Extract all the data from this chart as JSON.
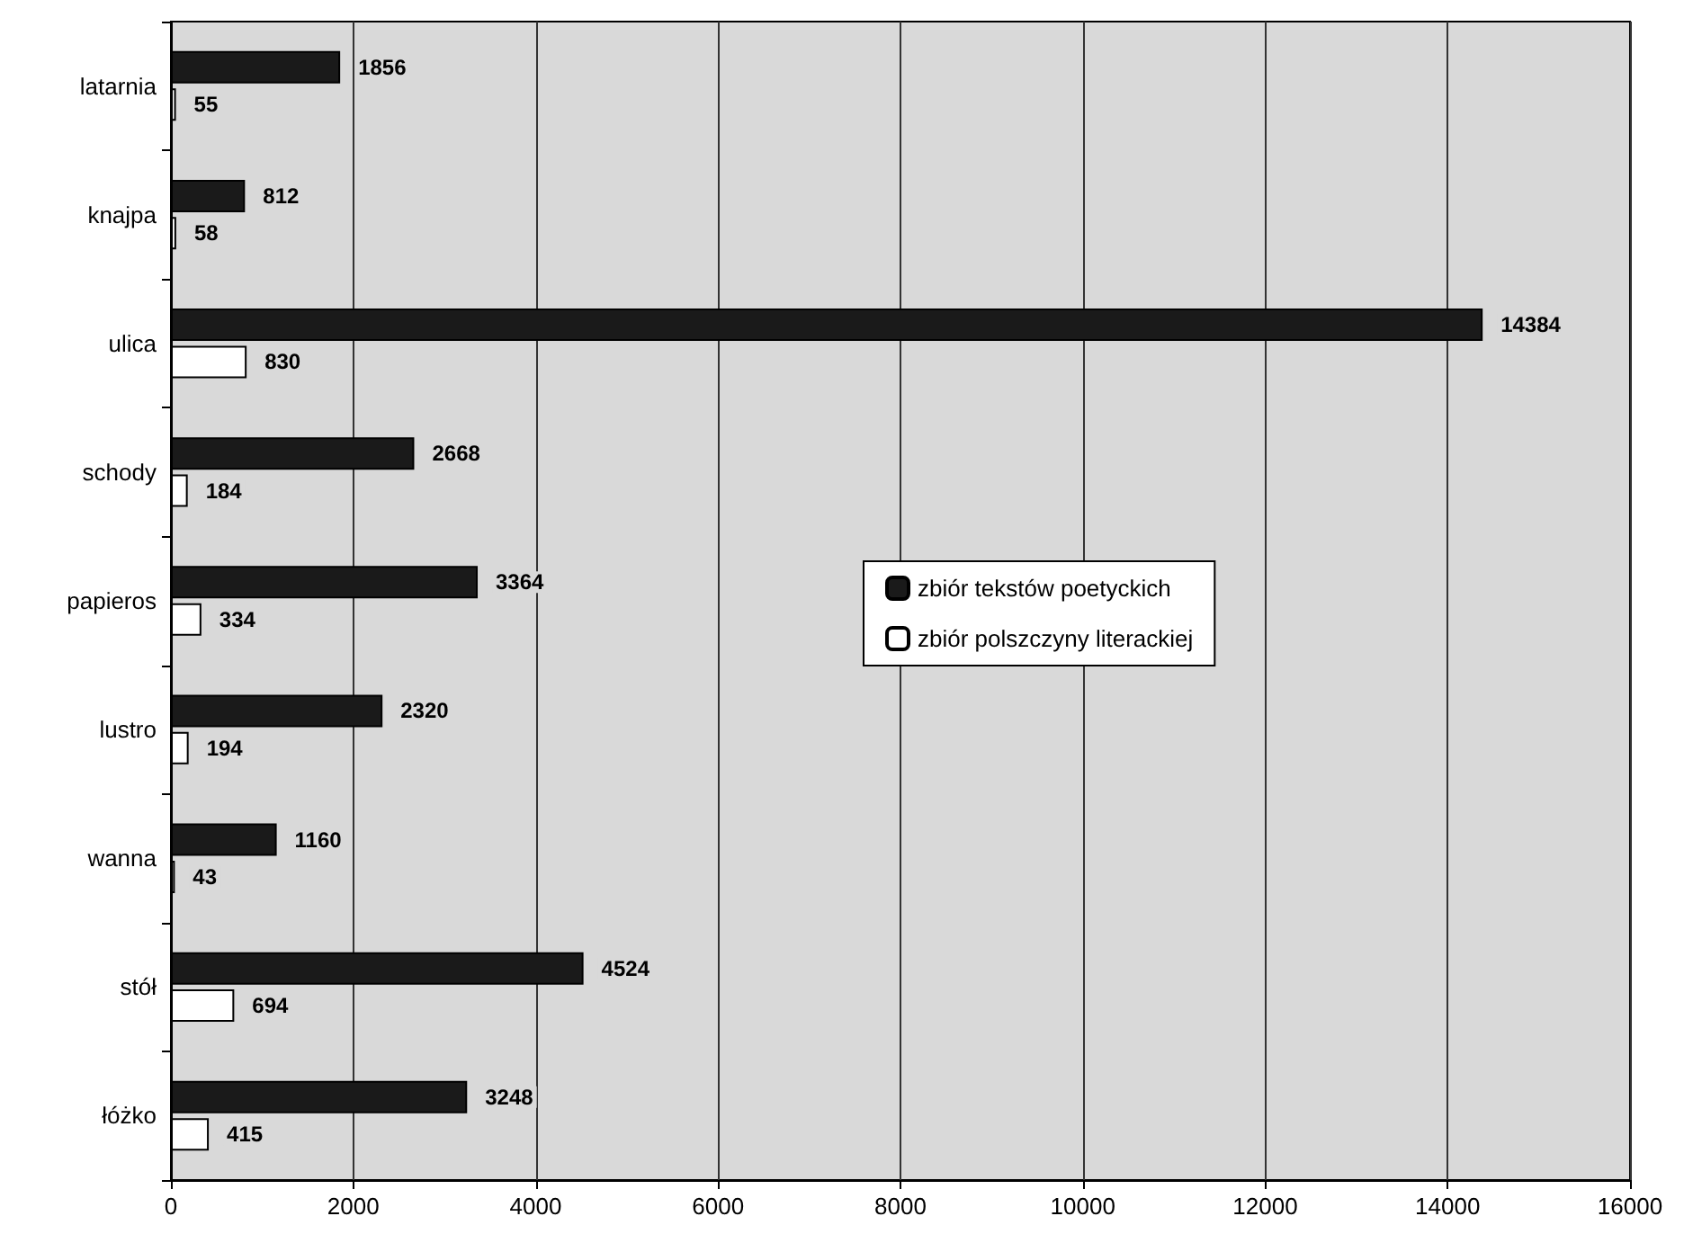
{
  "chart_data": {
    "type": "bar",
    "orientation": "horizontal",
    "categories": [
      "latarnia",
      "knajpa",
      "ulica",
      "schody",
      "papieros",
      "lustro",
      "wanna",
      "stół",
      "łóżko"
    ],
    "series": [
      {
        "name": "zbiór tekstów poetyckich",
        "color": "#1a1a1a",
        "values": [
          1856,
          812,
          14384,
          2668,
          3364,
          2320,
          1160,
          4524,
          3248
        ]
      },
      {
        "name": "zbiór polszczyny literackiej",
        "color": "#ffffff",
        "values": [
          55,
          58,
          830,
          184,
          334,
          194,
          43,
          694,
          415
        ]
      }
    ],
    "xlim": [
      0,
      16000
    ],
    "xticks": [
      0,
      2000,
      4000,
      6000,
      8000,
      10000,
      12000,
      14000,
      16000
    ],
    "grid": "x",
    "legend": "right",
    "data_labels": true
  }
}
